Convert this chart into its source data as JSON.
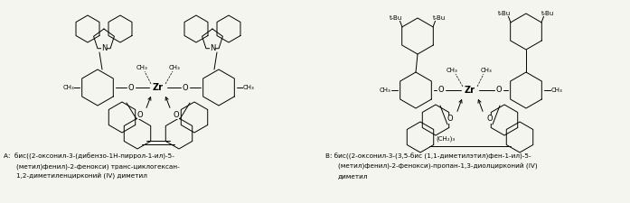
{
  "background_color": "#f5f5f0",
  "fig_width": 6.97,
  "fig_height": 2.25,
  "dpi": 100,
  "font_size_label": 6.5,
  "font_size_text": 5.2,
  "font_size_chem": 5.0,
  "font_size_atom": 6.0,
  "text_A_lines": [
    "А:  бис((2‑оксонил-3-(дибензо-1H-пиррол-1-ил)-5-",
    "(метил)фенил)-2-фенокси) транс-циклогексан-",
    "1,2-диметиленцирконий (IV) диметил"
  ],
  "text_B_lines": [
    "В: бис((2-оксонил-3-(3,5-бис (1,1-диметилэтил)фен-1-ил)-5-",
    "(метил)фенил)-2-фенокси)-пропан-1,3-диолцирконий (IV)",
    "диметил"
  ]
}
